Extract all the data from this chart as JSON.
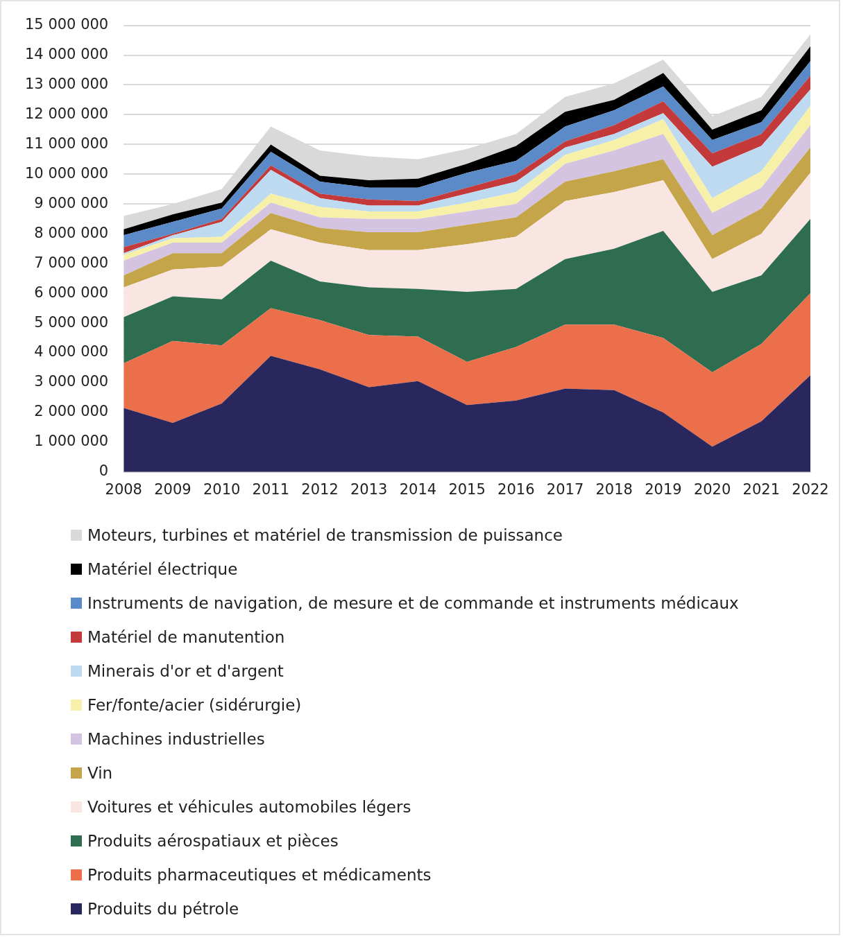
{
  "chart_data": {
    "type": "area",
    "stacked": true,
    "grid": "y",
    "legend": "bottom",
    "categories": [
      "2008",
      "2009",
      "2010",
      "2011",
      "2012",
      "2013",
      "2014",
      "2015",
      "2016",
      "2017",
      "2018",
      "2019",
      "2020",
      "2021",
      "2022"
    ],
    "ylim": [
      0,
      15000000
    ],
    "yticks": [
      0,
      {
        "value": 1000000,
        "label": "1 000 000"
      },
      {
        "value": 2000000,
        "label": "2 000 000"
      },
      {
        "value": 3000000,
        "label": "3 000 000"
      },
      {
        "value": 4000000,
        "label": "4 000 000"
      },
      {
        "value": 5000000,
        "label": "5 000 000"
      },
      {
        "value": 6000000,
        "label": "6 000 000"
      },
      {
        "value": 7000000,
        "label": "7 000 000"
      },
      {
        "value": 8000000,
        "label": "8 000 000"
      },
      {
        "value": 9000000,
        "label": "9 000 000"
      },
      {
        "value": 10000000,
        "label": "10 000 000"
      },
      {
        "value": 11000000,
        "label": "11 000 000"
      },
      {
        "value": 12000000,
        "label": "12 000 000"
      },
      {
        "value": 13000000,
        "label": "13 000 000"
      },
      {
        "value": 14000000,
        "label": "14 000 000"
      },
      {
        "value": 15000000,
        "label": "15 000 000"
      }
    ],
    "series": [
      {
        "name": "Produits du pétrole",
        "color": "#29275d",
        "values": [
          2150000,
          1650000,
          2300000,
          3900000,
          3450000,
          2850000,
          3050000,
          2250000,
          2400000,
          2800000,
          2750000,
          2000000,
          850000,
          1700000,
          3250000
        ]
      },
      {
        "name": "Produits pharmaceutiques et médicaments",
        "color": "#eb6f4a",
        "values": [
          1500000,
          2750000,
          1950000,
          1600000,
          1650000,
          1750000,
          1500000,
          1450000,
          1800000,
          2150000,
          2200000,
          2500000,
          2500000,
          2600000,
          2750000
        ]
      },
      {
        "name": "Produits aérospatiaux et pièces",
        "color": "#2e6d50",
        "values": [
          1550000,
          1500000,
          1550000,
          1600000,
          1300000,
          1600000,
          1600000,
          2350000,
          1950000,
          2200000,
          2550000,
          3600000,
          2700000,
          2300000,
          2500000
        ]
      },
      {
        "name": "Voitures et véhicules automobiles légers",
        "color": "#f9e6e3",
        "values": [
          1000000,
          900000,
          1100000,
          1050000,
          1300000,
          1250000,
          1300000,
          1600000,
          1750000,
          1950000,
          1900000,
          1700000,
          1100000,
          1400000,
          1550000
        ]
      },
      {
        "name": "Vin",
        "color": "#c4a54a",
        "values": [
          400000,
          550000,
          450000,
          550000,
          500000,
          600000,
          600000,
          650000,
          650000,
          650000,
          700000,
          700000,
          800000,
          850000,
          850000
        ]
      },
      {
        "name": "Machines industrielles",
        "color": "#d5c3e2",
        "values": [
          500000,
          350000,
          350000,
          350000,
          350000,
          450000,
          450000,
          450000,
          450000,
          600000,
          700000,
          850000,
          750000,
          700000,
          750000
        ]
      },
      {
        "name": "Fer/fonte/acier (sidérurgie)",
        "color": "#f6f0a8",
        "values": [
          200000,
          150000,
          200000,
          300000,
          350000,
          250000,
          250000,
          300000,
          400000,
          300000,
          350000,
          500000,
          500000,
          550000,
          650000
        ]
      },
      {
        "name": "Minerais d'or et d'argent",
        "color": "#bddaf1",
        "values": [
          50000,
          100000,
          500000,
          800000,
          300000,
          200000,
          200000,
          300000,
          350000,
          250000,
          200000,
          200000,
          1050000,
          850000,
          550000
        ]
      },
      {
        "name": "Matériel de manutention",
        "color": "#c43a3a",
        "values": [
          200000,
          50000,
          100000,
          150000,
          150000,
          200000,
          150000,
          200000,
          250000,
          200000,
          300000,
          400000,
          450000,
          400000,
          450000
        ]
      },
      {
        "name": "Instruments de navigation, de mesure et de commande et instruments médicaux",
        "color": "#5a8ac8",
        "values": [
          400000,
          400000,
          350000,
          450000,
          400000,
          400000,
          450000,
          500000,
          450000,
          500000,
          500000,
          500000,
          450000,
          400000,
          500000
        ]
      },
      {
        "name": "Matériel électrique",
        "color": "#000000",
        "values": [
          200000,
          250000,
          200000,
          250000,
          200000,
          250000,
          300000,
          300000,
          500000,
          500000,
          350000,
          450000,
          350000,
          400000,
          500000
        ]
      },
      {
        "name": "Moteurs, turbines et matériel de transmission de puissance",
        "color": "#d9d9d9",
        "values": [
          450000,
          350000,
          450000,
          600000,
          850000,
          800000,
          650000,
          500000,
          400000,
          500000,
          550000,
          450000,
          450000,
          450000,
          400000
        ]
      }
    ]
  }
}
